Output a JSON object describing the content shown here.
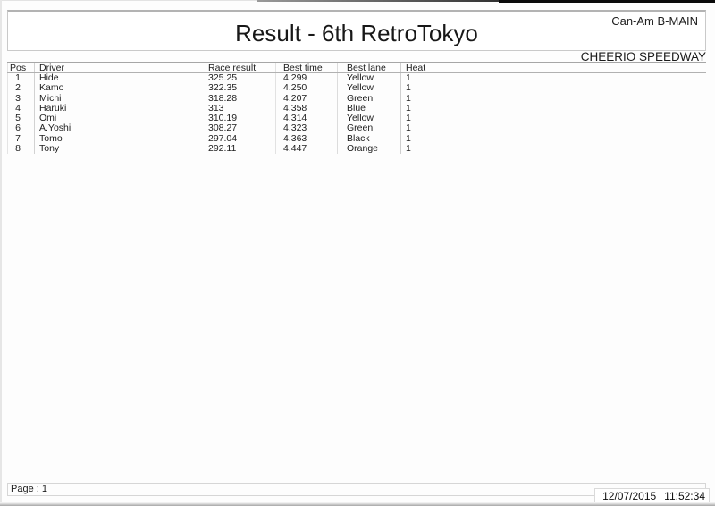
{
  "header": {
    "class_label": "Can-Am B-MAIN",
    "title": "Result - 6th RetroTokyo",
    "venue": "CHEERIO SPEEDWAY"
  },
  "results_table": {
    "columns": [
      "Pos",
      "Driver",
      "Race result",
      "Best time",
      "Best lane",
      "Heat"
    ],
    "rows": [
      {
        "pos": "1",
        "driver": "Hide",
        "race_result": "325.25",
        "best_time": "4.299",
        "best_lane": "Yellow",
        "heat": "1"
      },
      {
        "pos": "2",
        "driver": "Kamo",
        "race_result": "322.35",
        "best_time": "4.250",
        "best_lane": "Yellow",
        "heat": "1"
      },
      {
        "pos": "3",
        "driver": "Michi",
        "race_result": "318.28",
        "best_time": "4.207",
        "best_lane": "Green",
        "heat": "1"
      },
      {
        "pos": "4",
        "driver": "Haruki",
        "race_result": "313",
        "best_time": "4.358",
        "best_lane": "Blue",
        "heat": "1"
      },
      {
        "pos": "5",
        "driver": "Omi",
        "race_result": "310.19",
        "best_time": "4.314",
        "best_lane": "Yellow",
        "heat": "1"
      },
      {
        "pos": "6",
        "driver": "A.Yoshi",
        "race_result": "308.27",
        "best_time": "4.323",
        "best_lane": "Green",
        "heat": "1"
      },
      {
        "pos": "7",
        "driver": "Tomo",
        "race_result": "297.04",
        "best_time": "4.363",
        "best_lane": "Black",
        "heat": "1"
      },
      {
        "pos": "8",
        "driver": "Tony",
        "race_result": "292.11",
        "best_time": "4.447",
        "best_lane": "Orange",
        "heat": "1"
      }
    ]
  },
  "footer": {
    "page_label": "Page : 1",
    "date": "12/07/2015",
    "time": "11:52:34"
  }
}
